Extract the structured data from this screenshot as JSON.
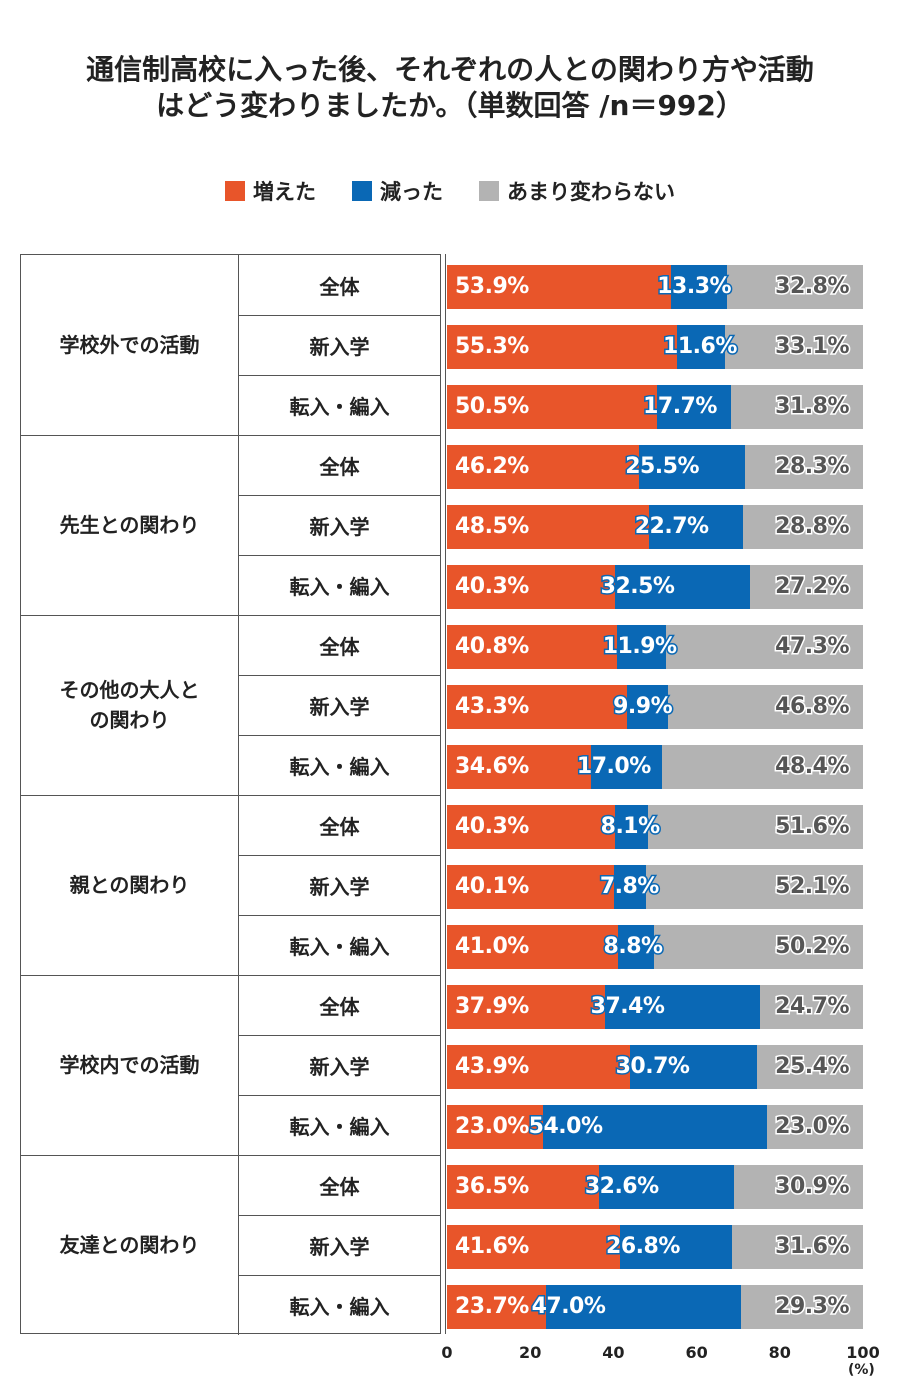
{
  "title_lines": [
    "通信制高校に入った後、それぞれの人との関わり方や活動",
    "はどう変わりましたか。（単数回答 /n＝992）"
  ],
  "legend": [
    {
      "label": "増えた",
      "color": "#e8552a"
    },
    {
      "label": "減った",
      "color": "#0a68b5"
    },
    {
      "label": "あまり変わらない",
      "color": "#b3b3b3"
    }
  ],
  "axis": {
    "ticks": [
      "0",
      "20",
      "40",
      "60",
      "80",
      "100"
    ],
    "unit": "(%)"
  },
  "chart_data": {
    "type": "bar",
    "orientation": "horizontal-stacked-100",
    "title": "通信制高校に入った後、それぞれの人との関わり方や活動はどう変わりましたか。（単数回答 /n＝992）",
    "xlim": [
      0,
      100
    ],
    "series_names": [
      "増えた",
      "減った",
      "あまり変わらない"
    ],
    "colors": [
      "#e8552a",
      "#0a68b5",
      "#b3b3b3"
    ],
    "groups": [
      {
        "name": "学校外での活動",
        "rows": [
          {
            "label": "全体",
            "values": [
              53.9,
              13.3,
              32.8
            ],
            "labels": [
              "53.9%",
              "13.3%",
              "32.8%"
            ]
          },
          {
            "label": "新入学",
            "values": [
              55.3,
              11.6,
              33.1
            ],
            "labels": [
              "55.3%",
              "11.6%",
              "33.1%"
            ]
          },
          {
            "label": "転入・編入",
            "values": [
              50.5,
              17.7,
              31.8
            ],
            "labels": [
              "50.5%",
              "17.7%",
              "31.8%"
            ]
          }
        ]
      },
      {
        "name": "先生との関わり",
        "rows": [
          {
            "label": "全体",
            "values": [
              46.2,
              25.5,
              28.3
            ],
            "labels": [
              "46.2%",
              "25.5%",
              "28.3%"
            ]
          },
          {
            "label": "新入学",
            "values": [
              48.5,
              22.7,
              28.8
            ],
            "labels": [
              "48.5%",
              "22.7%",
              "28.8%"
            ]
          },
          {
            "label": "転入・編入",
            "values": [
              40.3,
              32.5,
              27.2
            ],
            "labels": [
              "40.3%",
              "32.5%",
              "27.2%"
            ]
          }
        ]
      },
      {
        "name": "その他の大人との関わり",
        "display_lines": [
          "その他の大人と",
          "の関わり"
        ],
        "rows": [
          {
            "label": "全体",
            "values": [
              40.8,
              11.9,
              47.3
            ],
            "labels": [
              "40.8%",
              "11.9%",
              "47.3%"
            ]
          },
          {
            "label": "新入学",
            "values": [
              43.3,
              9.9,
              46.8
            ],
            "labels": [
              "43.3%",
              "9.9%",
              "46.8%"
            ]
          },
          {
            "label": "転入・編入",
            "values": [
              34.6,
              17.0,
              48.4
            ],
            "labels": [
              "34.6%",
              "17.0%",
              "48.4%"
            ]
          }
        ]
      },
      {
        "name": "親との関わり",
        "rows": [
          {
            "label": "全体",
            "values": [
              40.3,
              8.1,
              51.6
            ],
            "labels": [
              "40.3%",
              "8.1%",
              "51.6%"
            ]
          },
          {
            "label": "新入学",
            "values": [
              40.1,
              7.8,
              52.1
            ],
            "labels": [
              "40.1%",
              "7.8%",
              "52.1%"
            ]
          },
          {
            "label": "転入・編入",
            "values": [
              41.0,
              8.8,
              50.2
            ],
            "labels": [
              "41.0%",
              "8.8%",
              "50.2%"
            ]
          }
        ]
      },
      {
        "name": "学校内での活動",
        "rows": [
          {
            "label": "全体",
            "values": [
              37.9,
              37.4,
              24.7
            ],
            "labels": [
              "37.9%",
              "37.4%",
              "24.7%"
            ]
          },
          {
            "label": "新入学",
            "values": [
              43.9,
              30.7,
              25.4
            ],
            "labels": [
              "43.9%",
              "30.7%",
              "25.4%"
            ]
          },
          {
            "label": "転入・編入",
            "values": [
              23.0,
              54.0,
              23.0
            ],
            "labels": [
              "23.0%",
              "54.0%",
              "23.0%"
            ]
          }
        ]
      },
      {
        "name": "友達との関わり",
        "rows": [
          {
            "label": "全体",
            "values": [
              36.5,
              32.6,
              30.9
            ],
            "labels": [
              "36.5%",
              "32.6%",
              "30.9%"
            ]
          },
          {
            "label": "新入学",
            "values": [
              41.6,
              26.8,
              31.6
            ],
            "labels": [
              "41.6%",
              "26.8%",
              "31.6%"
            ]
          },
          {
            "label": "転入・編入",
            "values": [
              23.7,
              47.0,
              29.3
            ],
            "labels": [
              "23.7%",
              "47.0%",
              "29.3%"
            ]
          }
        ]
      }
    ]
  }
}
